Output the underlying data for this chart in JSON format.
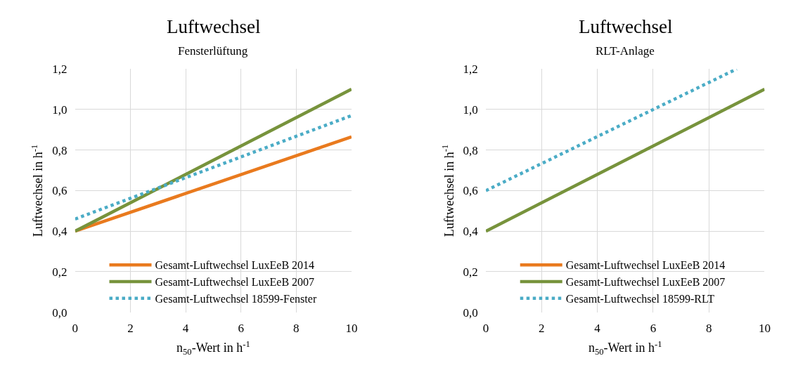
{
  "chart_data": [
    {
      "type": "line",
      "title": "Luftwechsel",
      "subtitle": "Fensterlüftung",
      "xlabel": "n$_{50}$-Wert in h$^{-1}$",
      "ylabel": "Luftwechsel in h$^{-1}$",
      "xlim": [
        0,
        10
      ],
      "xticks": [
        0,
        2,
        4,
        6,
        8,
        10
      ],
      "ylim": [
        0,
        1.2
      ],
      "yticks": [
        {
          "value": 0,
          "label": "0,0"
        },
        {
          "value": 0.2,
          "label": "0,2"
        },
        {
          "value": 0.4,
          "label": "0,4"
        },
        {
          "value": 0.6,
          "label": "0,6"
        },
        {
          "value": 0.8,
          "label": "0,8"
        },
        {
          "value": 1.0,
          "label": "1,0"
        },
        {
          "value": 1.2,
          "label": "1,2"
        }
      ],
      "grid": true,
      "legend": "bottom",
      "marker": "none",
      "series": [
        {
          "name": "Gesamt-Luftwechsel LuxEeB 2014",
          "color": "#e97a1e",
          "x": [
            0,
            10
          ],
          "values": [
            0.4,
            0.865
          ],
          "line_style": "solid"
        },
        {
          "name": "Gesamt-Luftwechsel LuxEeB 2007",
          "color": "#77933c",
          "x": [
            0,
            10
          ],
          "values": [
            0.4,
            1.1
          ],
          "line_style": "solid"
        },
        {
          "name": "Gesamt-Luftwechsel 18599-Fenster",
          "color": "#4bacc6",
          "x": [
            0,
            10
          ],
          "values": [
            0.46,
            0.97
          ],
          "line_style": "dotted"
        }
      ]
    },
    {
      "type": "line",
      "title": "Luftwechsel",
      "subtitle": "RLT-Anlage",
      "xlabel": "n$_{50}$-Wert in h$^{-1}$",
      "ylabel": "Luftwechsel in h$^{-1}$",
      "xlim": [
        0,
        10
      ],
      "xticks": [
        0,
        2,
        4,
        6,
        8,
        10
      ],
      "ylim": [
        0,
        1.2
      ],
      "yticks": [
        {
          "value": 0,
          "label": "0,0"
        },
        {
          "value": 0.2,
          "label": "0,2"
        },
        {
          "value": 0.4,
          "label": "0,4"
        },
        {
          "value": 0.6,
          "label": "0,6"
        },
        {
          "value": 0.8,
          "label": "0,8"
        },
        {
          "value": 1.0,
          "label": "1,0"
        },
        {
          "value": 1.2,
          "label": "1,2"
        }
      ],
      "grid": true,
      "legend": "bottom",
      "marker": "none",
      "series": [
        {
          "name": "Gesamt-Luftwechsel LuxEeB 2014",
          "color": "#e97a1e",
          "values": [
            null,
            null
          ],
          "line_style": "solid"
        },
        {
          "name": "Gesamt-Luftwechsel LuxEeB 2007",
          "color": "#77933c",
          "x": [
            0,
            10
          ],
          "values": [
            0.4,
            1.1
          ],
          "line_style": "solid"
        },
        {
          "name": "Gesamt-Luftwechsel 18599-RLT",
          "color": "#4bacc6",
          "x": [
            0,
            9
          ],
          "values": [
            0.6,
            1.2
          ],
          "line_style": "dotted"
        }
      ]
    }
  ]
}
